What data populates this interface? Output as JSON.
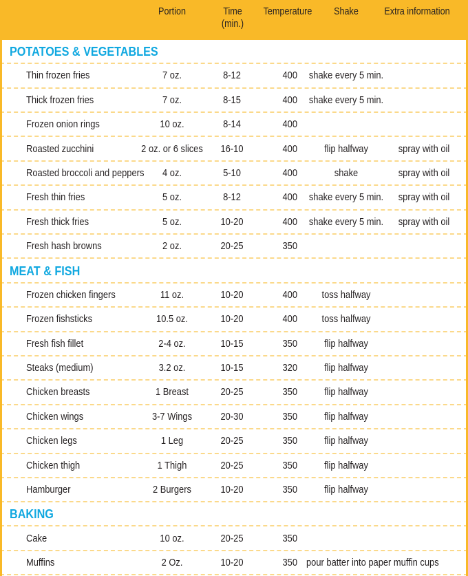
{
  "colors": {
    "header_bg": "#f9b928",
    "section_title": "#10a8e0",
    "row_divider": "#fbd98a",
    "border": "#f9b928"
  },
  "header": {
    "columns": [
      {
        "label": "Portion"
      },
      {
        "label": "Time",
        "sub": "(min.)"
      },
      {
        "label": "Temperature"
      },
      {
        "label": "Shake"
      },
      {
        "label": "Extra information"
      }
    ]
  },
  "sections": [
    {
      "title": "POTATOES & VEGETABLES",
      "rows": [
        {
          "name": "Thin frozen fries",
          "portion": "7 oz.",
          "time": "8-12",
          "temp": "400",
          "shake": "shake every 5 min.",
          "extra": ""
        },
        {
          "name": "Thick frozen fries",
          "portion": "7 oz.",
          "time": "8-15",
          "temp": "400",
          "shake": "shake every 5 min.",
          "extra": ""
        },
        {
          "name": "Frozen onion rings",
          "portion": "10 oz.",
          "time": "8-14",
          "temp": "400",
          "shake": "",
          "extra": ""
        },
        {
          "name": "Roasted zucchini",
          "portion": "2 oz. or 6 slices",
          "time": "16-10",
          "temp": "400",
          "shake": "flip halfway",
          "extra": "spray with oil"
        },
        {
          "name": "Roasted broccoli and peppers",
          "portion": "4 oz.",
          "time": "5-10",
          "temp": "400",
          "shake": "shake",
          "extra": "spray with oil"
        },
        {
          "name": "Fresh thin fries",
          "portion": "5 oz.",
          "time": "8-12",
          "temp": "400",
          "shake": "shake every 5 min.",
          "extra": "spray with oil"
        },
        {
          "name": "Fresh thick fries",
          "portion": "5 oz.",
          "time": "10-20",
          "temp": "400",
          "shake": "shake every 5 min.",
          "extra": "spray with oil"
        },
        {
          "name": "Fresh hash browns",
          "portion": "2 oz.",
          "time": "20-25",
          "temp": "350",
          "shake": "",
          "extra": ""
        }
      ]
    },
    {
      "title": "MEAT & FISH",
      "rows": [
        {
          "name": "Frozen chicken fingers",
          "portion": "11 oz.",
          "time": "10-20",
          "temp": "400",
          "shake": "toss halfway",
          "extra": ""
        },
        {
          "name": "Frozen fishsticks",
          "portion": "10.5 oz.",
          "time": "10-20",
          "temp": "400",
          "shake": "toss halfway",
          "extra": ""
        },
        {
          "name": "Fresh fish fillet",
          "portion": "2-4 oz.",
          "time": "10-15",
          "temp": "350",
          "shake": "flip halfway",
          "extra": ""
        },
        {
          "name": "Steaks (medium)",
          "portion": "3.2 oz.",
          "time": "10-15",
          "temp": "320",
          "shake": "flip halfway",
          "extra": ""
        },
        {
          "name": "Chicken breasts",
          "portion": "1 Breast",
          "time": "20-25",
          "temp": "350",
          "shake": "flip halfway",
          "extra": ""
        },
        {
          "name": "Chicken wings",
          "portion": "3-7 Wings",
          "time": "20-30",
          "temp": "350",
          "shake": "flip halfway",
          "extra": ""
        },
        {
          "name": "Chicken legs",
          "portion": "1 Leg",
          "time": "20-25",
          "temp": "350",
          "shake": "flip halfway",
          "extra": ""
        },
        {
          "name": "Chicken thigh",
          "portion": "1 Thigh",
          "time": "20-25",
          "temp": "350",
          "shake": "flip halfway",
          "extra": ""
        },
        {
          "name": "Hamburger",
          "portion": "2 Burgers",
          "time": "10-20",
          "temp": "350",
          "shake": "flip halfway",
          "extra": ""
        }
      ]
    },
    {
      "title": "BAKING",
      "rows": [
        {
          "name": "Cake",
          "portion": "10 oz.",
          "time": "20-25",
          "temp": "350",
          "shake": "",
          "extra": ""
        },
        {
          "name": "Muffins",
          "portion": "2 Oz.",
          "time": "10-20",
          "temp": "350",
          "shake": "",
          "extra": "",
          "note": "pour batter into paper  muffin cups"
        }
      ]
    }
  ]
}
